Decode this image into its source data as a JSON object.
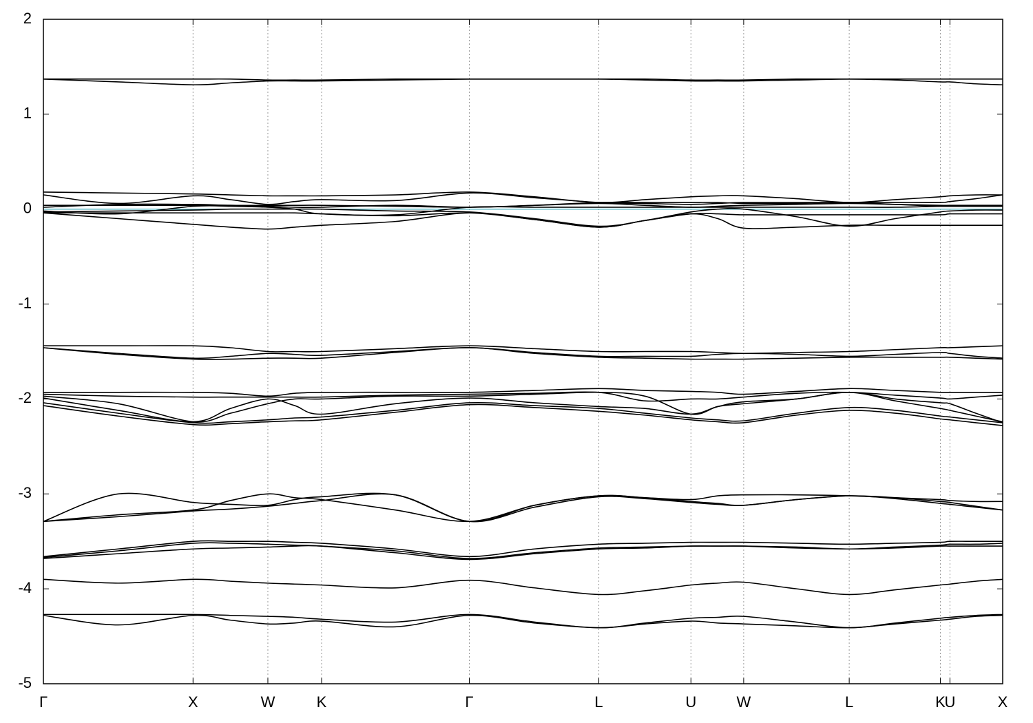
{
  "chart_data": {
    "type": "line",
    "x": [
      0,
      0.078,
      0.156,
      0.195,
      0.234,
      0.262,
      0.29,
      0.367,
      0.444,
      0.512,
      0.579,
      0.627,
      0.675,
      0.703,
      0.73,
      0.785,
      0.84,
      0.888,
      0.935,
      0.945,
      0.972,
      1.0
    ],
    "xlim": [
      0,
      1.0
    ],
    "xticks": [
      {
        "value": 0,
        "label": "Γ"
      },
      {
        "value": 0.156,
        "label": "X"
      },
      {
        "value": 0.234,
        "label": "W"
      },
      {
        "value": 0.29,
        "label": "K"
      },
      {
        "value": 0.444,
        "label": "Γ"
      },
      {
        "value": 0.579,
        "label": "L"
      },
      {
        "value": 0.675,
        "label": "U"
      },
      {
        "value": 0.73,
        "label": "W"
      },
      {
        "value": 0.84,
        "label": "L"
      },
      {
        "value": 0.935,
        "label": "K"
      },
      {
        "value": 0.945,
        "label": "U"
      },
      {
        "value": 1.0,
        "label": "X"
      }
    ],
    "ylim": [
      -5,
      2
    ],
    "yticks": [
      2,
      1,
      0,
      -1,
      -2,
      -3,
      -4,
      -5
    ],
    "grid": true,
    "fermi_level": 0,
    "fermi_color": "#5fb8c4",
    "series": [
      {
        "color": "#000000",
        "values": [
          1.37,
          1.34,
          1.31,
          1.33,
          1.35,
          1.35,
          1.35,
          1.36,
          1.37,
          1.37,
          1.37,
          1.36,
          1.35,
          1.35,
          1.35,
          1.36,
          1.37,
          1.36,
          1.34,
          1.34,
          1.32,
          1.31
        ]
      },
      {
        "color": "#000000",
        "values": [
          1.37,
          1.37,
          1.37,
          1.37,
          1.36,
          1.36,
          1.36,
          1.37,
          1.37,
          1.37,
          1.37,
          1.37,
          1.36,
          1.36,
          1.36,
          1.37,
          1.37,
          1.37,
          1.37,
          1.37,
          1.37,
          1.37
        ]
      },
      {
        "color": "#000000",
        "values": [
          0.18,
          0.17,
          0.16,
          0.15,
          0.14,
          0.14,
          0.14,
          0.15,
          0.18,
          0.13,
          0.07,
          0.1,
          0.13,
          0.14,
          0.14,
          0.11,
          0.07,
          0.1,
          0.13,
          0.14,
          0.15,
          0.15
        ]
      },
      {
        "color": "#000000",
        "values": [
          0.15,
          0.06,
          0.14,
          0.1,
          0.05,
          0.08,
          0.1,
          0.09,
          0.17,
          0.12,
          0.07,
          0.06,
          0.05,
          0.06,
          0.07,
          0.07,
          0.07,
          0.07,
          0.07,
          0.08,
          0.11,
          0.15
        ]
      },
      {
        "color": "#000000",
        "values": [
          0.02,
          0.05,
          0.05,
          0.04,
          0.04,
          0.04,
          0.04,
          0.03,
          0.02,
          0.04,
          0.06,
          0.04,
          0.02,
          0.03,
          0.04,
          0.05,
          0.06,
          0.05,
          0.04,
          0.04,
          0.04,
          0.04
        ]
      },
      {
        "color": "#000000",
        "values": [
          -0.02,
          -0.05,
          0.03,
          0.03,
          0.02,
          0.0,
          -0.05,
          -0.06,
          0.02,
          0.02,
          0.02,
          0.02,
          0.02,
          0.02,
          0.02,
          0.02,
          0.02,
          0.02,
          0.03,
          0.03,
          0.03,
          0.03
        ]
      },
      {
        "color": "#000000",
        "values": [
          -0.03,
          -0.02,
          -0.01,
          0.0,
          0.0,
          0.0,
          0.0,
          -0.02,
          -0.03,
          -0.1,
          -0.18,
          -0.12,
          -0.03,
          0.0,
          0.0,
          -0.08,
          -0.18,
          -0.1,
          -0.03,
          -0.02,
          -0.01,
          -0.01
        ]
      },
      {
        "color": "#000000",
        "values": [
          -0.04,
          -0.04,
          -0.04,
          -0.04,
          -0.04,
          -0.04,
          -0.05,
          -0.07,
          -0.04,
          -0.11,
          -0.19,
          -0.12,
          -0.05,
          -0.05,
          -0.06,
          -0.06,
          -0.06,
          -0.06,
          -0.06,
          -0.05,
          -0.05,
          -0.05
        ]
      },
      {
        "color": "#000000",
        "values": [
          -0.04,
          -0.1,
          -0.16,
          -0.19,
          -0.21,
          -0.19,
          -0.17,
          -0.13,
          -0.04,
          -0.11,
          -0.19,
          -0.12,
          -0.05,
          -0.1,
          -0.2,
          -0.19,
          -0.17,
          -0.17,
          -0.17,
          -0.17,
          -0.17,
          -0.17
        ]
      },
      {
        "color": "#000000",
        "values": [
          0.04,
          0.04,
          0.04,
          0.04,
          0.03,
          0.02,
          0.02,
          0.04,
          0.02,
          0.04,
          0.07,
          0.07,
          0.07,
          0.07,
          0.06,
          0.06,
          0.07,
          0.05,
          0.03,
          0.03,
          0.03,
          0.03
        ]
      },
      {
        "color": "#000000",
        "values": [
          -1.44,
          -1.44,
          -1.44,
          -1.46,
          -1.5,
          -1.5,
          -1.5,
          -1.47,
          -1.44,
          -1.47,
          -1.5,
          -1.5,
          -1.5,
          -1.51,
          -1.52,
          -1.51,
          -1.5,
          -1.48,
          -1.46,
          -1.46,
          -1.45,
          -1.44
        ]
      },
      {
        "color": "#000000",
        "values": [
          -1.46,
          -1.52,
          -1.57,
          -1.55,
          -1.52,
          -1.53,
          -1.54,
          -1.5,
          -1.46,
          -1.51,
          -1.55,
          -1.55,
          -1.55,
          -1.53,
          -1.52,
          -1.53,
          -1.55,
          -1.53,
          -1.51,
          -1.52,
          -1.55,
          -1.57
        ]
      },
      {
        "color": "#000000",
        "values": [
          -1.46,
          -1.53,
          -1.58,
          -1.58,
          -1.57,
          -1.57,
          -1.57,
          -1.51,
          -1.46,
          -1.52,
          -1.56,
          -1.57,
          -1.58,
          -1.58,
          -1.58,
          -1.57,
          -1.56,
          -1.56,
          -1.56,
          -1.56,
          -1.57,
          -1.58
        ]
      },
      {
        "color": "#000000",
        "values": [
          -1.93,
          -1.93,
          -1.93,
          -1.94,
          -1.97,
          -1.94,
          -1.93,
          -1.93,
          -1.93,
          -1.91,
          -1.89,
          -1.91,
          -1.92,
          -1.93,
          -1.95,
          -1.92,
          -1.89,
          -1.91,
          -1.93,
          -1.93,
          -1.93,
          -1.93
        ]
      },
      {
        "color": "#000000",
        "values": [
          -1.95,
          -1.97,
          -1.98,
          -1.98,
          -1.98,
          -1.98,
          -1.98,
          -1.96,
          -1.95,
          -1.94,
          -1.93,
          -2.02,
          -2.0,
          -2.0,
          -1.98,
          -1.94,
          -1.93,
          -1.96,
          -1.99,
          -2.0,
          -1.98,
          -1.96
        ]
      },
      {
        "color": "#000000",
        "values": [
          -1.97,
          -2.05,
          -2.24,
          -2.15,
          -2.05,
          -2.0,
          -2.0,
          -1.97,
          -1.97,
          -1.95,
          -1.93,
          -1.97,
          -2.16,
          -2.08,
          -2.05,
          -2.0,
          -1.93,
          -2.0,
          -2.04,
          -2.05,
          -2.15,
          -2.25
        ]
      },
      {
        "color": "#000000",
        "values": [
          -1.99,
          -2.12,
          -2.24,
          -2.1,
          -2.0,
          -2.07,
          -2.16,
          -2.05,
          -1.99,
          -2.04,
          -2.08,
          -2.1,
          -2.16,
          -2.08,
          -2.03,
          -2.0,
          -1.93,
          -2.02,
          -2.1,
          -2.12,
          -2.18,
          -2.24
        ]
      },
      {
        "color": "#000000",
        "values": [
          -2.04,
          -2.15,
          -2.25,
          -2.24,
          -2.22,
          -2.2,
          -2.19,
          -2.12,
          -2.04,
          -2.07,
          -2.1,
          -2.15,
          -2.2,
          -2.22,
          -2.23,
          -2.15,
          -2.09,
          -2.12,
          -2.18,
          -2.19,
          -2.22,
          -2.25
        ]
      },
      {
        "color": "#000000",
        "values": [
          -2.07,
          -2.18,
          -2.27,
          -2.26,
          -2.24,
          -2.23,
          -2.22,
          -2.14,
          -2.06,
          -2.09,
          -2.13,
          -2.17,
          -2.22,
          -2.24,
          -2.25,
          -2.17,
          -2.12,
          -2.15,
          -2.21,
          -2.22,
          -2.25,
          -2.28
        ]
      },
      {
        "color": "#000000",
        "values": [
          -3.29,
          -3.0,
          -3.09,
          -3.11,
          -3.12,
          -3.06,
          -3.03,
          -3.01,
          -3.29,
          -3.12,
          -3.02,
          -3.04,
          -3.08,
          -3.1,
          -3.12,
          -3.06,
          -3.02,
          -3.04,
          -3.08,
          -3.09,
          -3.13,
          -3.17
        ]
      },
      {
        "color": "#000000",
        "values": [
          -3.29,
          -3.22,
          -3.17,
          -3.07,
          -3.0,
          -3.04,
          -3.06,
          -3.17,
          -3.29,
          -3.12,
          -3.02,
          -3.04,
          -3.06,
          -3.02,
          -3.01,
          -3.01,
          -3.02,
          -3.04,
          -3.06,
          -3.07,
          -3.08,
          -3.08
        ]
      },
      {
        "color": "#000000",
        "values": [
          -3.29,
          -3.24,
          -3.18,
          -3.16,
          -3.13,
          -3.1,
          -3.07,
          -3.01,
          -3.29,
          -3.14,
          -3.03,
          -3.05,
          -3.09,
          -3.11,
          -3.12,
          -3.06,
          -3.02,
          -3.05,
          -3.1,
          -3.11,
          -3.14,
          -3.17
        ]
      },
      {
        "color": "#000000",
        "values": [
          -3.66,
          -3.58,
          -3.5,
          -3.5,
          -3.5,
          -3.51,
          -3.52,
          -3.58,
          -3.66,
          -3.58,
          -3.53,
          -3.52,
          -3.51,
          -3.51,
          -3.51,
          -3.52,
          -3.53,
          -3.52,
          -3.51,
          -3.5,
          -3.5,
          -3.5
        ]
      },
      {
        "color": "#000000",
        "values": [
          -3.67,
          -3.6,
          -3.52,
          -3.52,
          -3.53,
          -3.54,
          -3.55,
          -3.6,
          -3.68,
          -3.62,
          -3.57,
          -3.56,
          -3.55,
          -3.55,
          -3.55,
          -3.56,
          -3.58,
          -3.56,
          -3.54,
          -3.53,
          -3.53,
          -3.52
        ]
      },
      {
        "color": "#000000",
        "values": [
          -3.68,
          -3.63,
          -3.58,
          -3.57,
          -3.56,
          -3.55,
          -3.55,
          -3.62,
          -3.69,
          -3.63,
          -3.58,
          -3.57,
          -3.55,
          -3.55,
          -3.55,
          -3.57,
          -3.58,
          -3.57,
          -3.55,
          -3.55,
          -3.55,
          -3.55
        ]
      },
      {
        "color": "#000000",
        "values": [
          -3.9,
          -3.94,
          -3.9,
          -3.92,
          -3.94,
          -3.95,
          -3.96,
          -3.99,
          -3.91,
          -3.99,
          -4.06,
          -4.02,
          -3.96,
          -3.94,
          -3.93,
          -4.0,
          -4.06,
          -4.01,
          -3.96,
          -3.95,
          -3.92,
          -3.9
        ]
      },
      {
        "color": "#000000",
        "values": [
          -4.27,
          -4.27,
          -4.27,
          -4.28,
          -4.29,
          -4.3,
          -4.32,
          -4.35,
          -4.27,
          -4.35,
          -4.41,
          -4.36,
          -4.31,
          -4.3,
          -4.29,
          -4.35,
          -4.41,
          -4.36,
          -4.31,
          -4.3,
          -4.28,
          -4.27
        ]
      },
      {
        "color": "#000000",
        "values": [
          -4.28,
          -4.38,
          -4.28,
          -4.33,
          -4.37,
          -4.36,
          -4.34,
          -4.4,
          -4.28,
          -4.36,
          -4.41,
          -4.37,
          -4.34,
          -4.36,
          -4.37,
          -4.39,
          -4.41,
          -4.37,
          -4.33,
          -4.32,
          -4.29,
          -4.28
        ]
      }
    ]
  }
}
